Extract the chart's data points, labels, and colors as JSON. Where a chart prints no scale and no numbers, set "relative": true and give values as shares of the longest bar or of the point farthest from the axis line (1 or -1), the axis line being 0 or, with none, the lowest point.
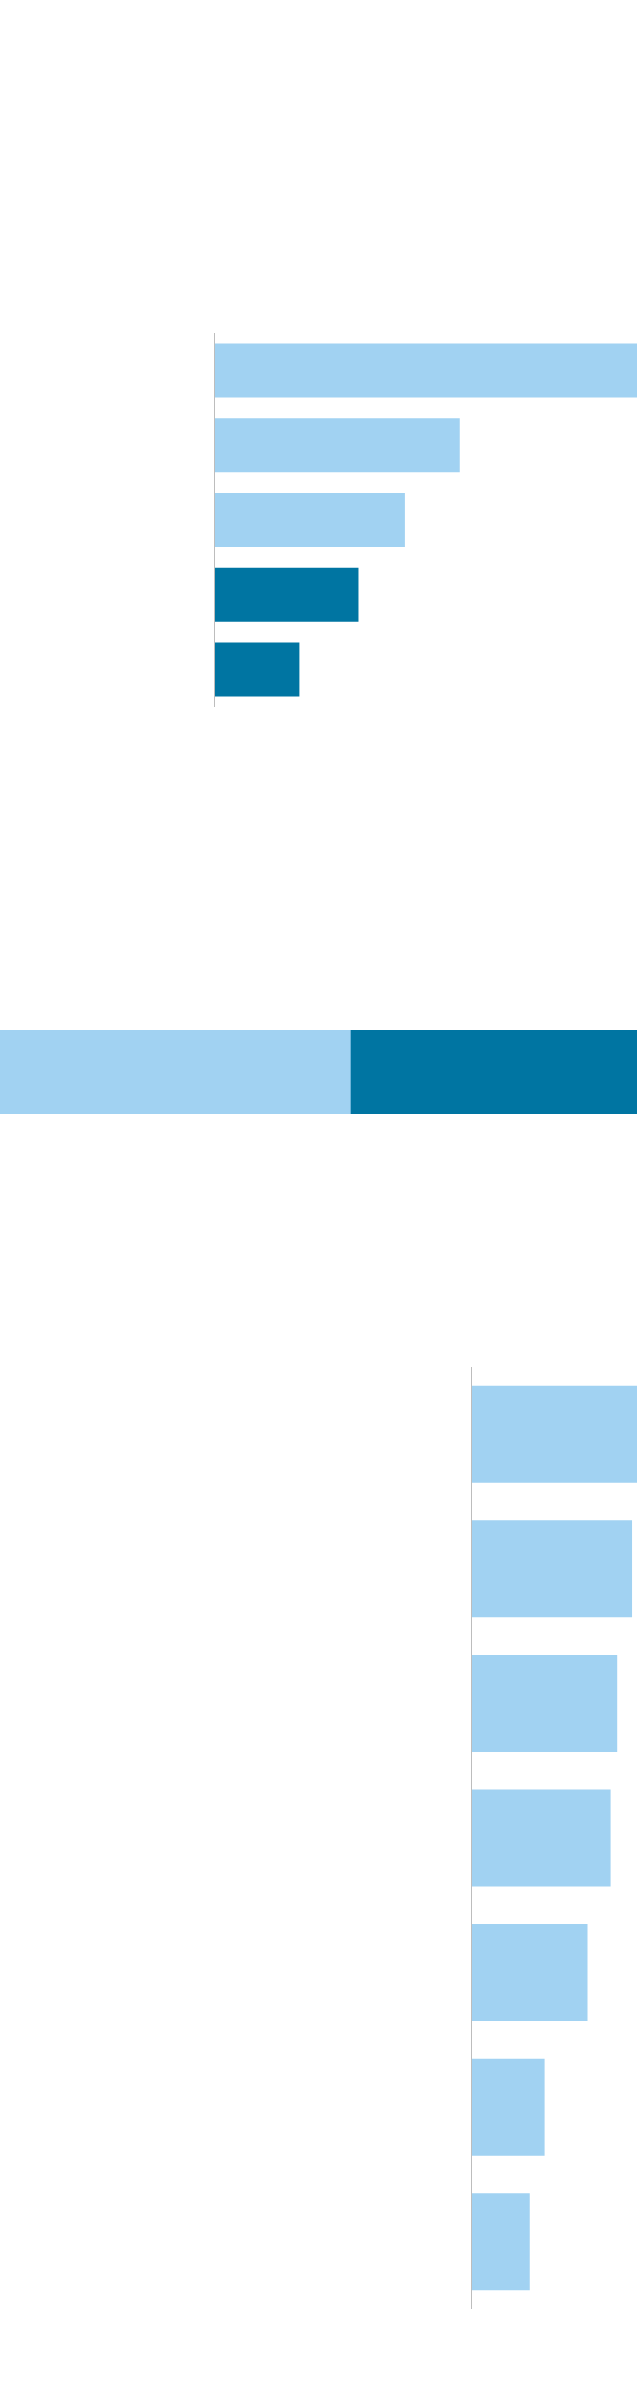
{
  "chart_data": [
    {
      "type": "bar",
      "orientation": "horizontal",
      "relative": true,
      "categories": [
        null,
        null,
        null,
        null,
        null
      ],
      "series": [
        {
          "colors": [
            "#a1d2f2",
            "#a1d2f2",
            "#a1d2f2",
            "#0075a2",
            "#0075a2"
          ],
          "values": [
            1,
            0.58,
            0.45,
            0.34,
            0.2
          ]
        }
      ]
    },
    {
      "type": "bar",
      "orientation": "horizontal",
      "relative": true,
      "stacked": true,
      "categories": [
        null
      ],
      "series": [
        {
          "color": "#a1d2f2",
          "values": [
            0.55
          ]
        },
        {
          "color": "#0075a2",
          "values": [
            0.45
          ]
        }
      ]
    },
    {
      "type": "bar",
      "orientation": "horizontal",
      "relative": true,
      "categories": [
        null,
        null,
        null,
        null,
        null,
        null,
        null
      ],
      "series": [
        {
          "color": "#a1d2f2",
          "values": [
            1,
            0.97,
            0.88,
            0.84,
            0.7,
            0.44,
            0.35
          ]
        }
      ]
    }
  ]
}
